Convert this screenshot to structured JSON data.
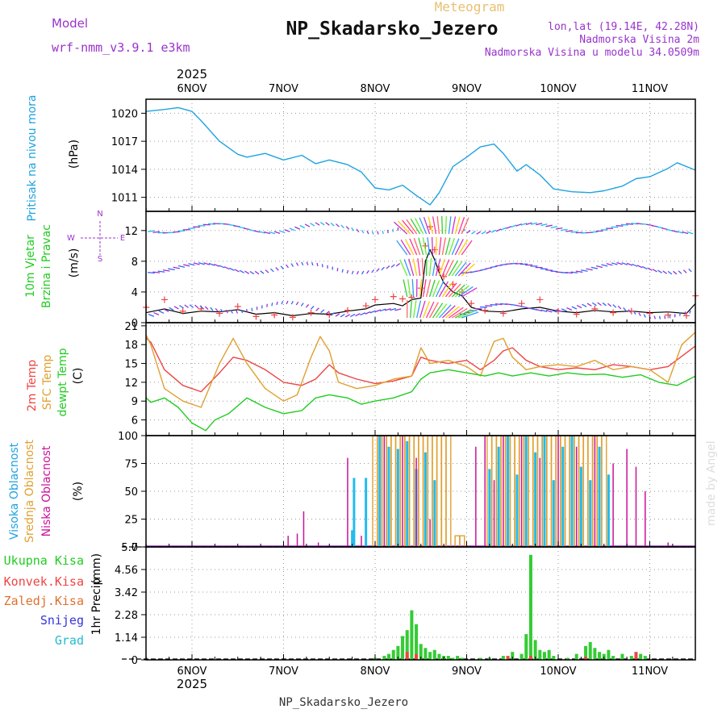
{
  "header": {
    "title": "NP_Skadarsko_Jezero",
    "subtitle": "Meteogram",
    "model_label": "Model",
    "model_name": "wrf-nmm_v3.9.1 e3km",
    "coords": "lon,lat (19.14E, 42.28N)",
    "elevation": "Nadmorska Visina 2m",
    "model_elevation": "Nadmorska Visina u modelu 34.0509m",
    "footer": "NP_Skadarsko_Jezero",
    "credit": "made by Angel",
    "year": "2025"
  },
  "colors": {
    "pressure": "#1fa3e0",
    "temp2m": "#ee4444",
    "sfc": "#e0a030",
    "dewpt": "#22cc22",
    "purple": "#9933cc",
    "blue": "#3366ff",
    "cyan": "#22bbee",
    "orange": "#e0a030",
    "magenta": "#cc1199",
    "green": "#33cc33",
    "red": "#ee4444",
    "black": "#000000"
  },
  "days": [
    "6NOV",
    "7NOV",
    "8NOV",
    "9NOV",
    "10NOV",
    "11NOV"
  ],
  "chart_data": [
    {
      "id": "pressure",
      "type": "line",
      "ylabel_main": "Pritisak na nivou mora",
      "units": "(hPa)",
      "yticks": [
        1011,
        1014,
        1017,
        1020
      ],
      "ylim": [
        1009.5,
        1021.5
      ],
      "x": [
        -0.5,
        -0.3,
        -0.15,
        0,
        0.1,
        0.3,
        0.5,
        0.6,
        0.8,
        1.0,
        1.2,
        1.35,
        1.5,
        1.7,
        1.85,
        2.0,
        2.15,
        2.3,
        2.45,
        2.6,
        2.7,
        2.85,
        3.0,
        3.15,
        3.3,
        3.4,
        3.55,
        3.65,
        3.8,
        3.95,
        4.15,
        4.35,
        4.5,
        4.7,
        4.85,
        5.0,
        5.2,
        5.3,
        5.5
      ],
      "values": [
        1020.2,
        1020.4,
        1020.6,
        1020.2,
        1019.2,
        1017.0,
        1015.6,
        1015.3,
        1015.7,
        1015.0,
        1015.5,
        1014.6,
        1015.0,
        1014.5,
        1013.7,
        1012.0,
        1011.8,
        1012.3,
        1011.2,
        1010.2,
        1011.5,
        1014.3,
        1015.3,
        1016.4,
        1016.7,
        1015.7,
        1013.8,
        1014.5,
        1013.4,
        1011.9,
        1011.6,
        1011.5,
        1011.7,
        1012.2,
        1013.0,
        1013.2,
        1014.1,
        1014.7,
        1013.9
      ]
    },
    {
      "id": "wind",
      "type": "line",
      "ylabel_main": "10m Vjetar",
      "ylabel_sub": "Brzina i Pravac",
      "units": "(m/s)",
      "yticks": [
        0,
        4,
        8,
        12
      ],
      "ylim": [
        0,
        14.5
      ],
      "compass": {
        "n": "N",
        "w": "W",
        "e": "E",
        "s": "S"
      },
      "x": [
        -0.5,
        -0.3,
        -0.1,
        0.1,
        0.3,
        0.5,
        0.7,
        0.9,
        1.1,
        1.3,
        1.5,
        1.7,
        1.9,
        2.0,
        2.2,
        2.3,
        2.4,
        2.5,
        2.55,
        2.6,
        2.65,
        2.7,
        2.75,
        2.85,
        2.95,
        3.05,
        3.2,
        3.4,
        3.6,
        3.8,
        4.0,
        4.2,
        4.4,
        4.6,
        4.8,
        5.0,
        5.2,
        5.4,
        5.5
      ],
      "values": [
        1.3,
        1.8,
        1.2,
        1.5,
        1.4,
        1.7,
        1.1,
        1.3,
        0.9,
        1.2,
        1.1,
        1.5,
        1.8,
        2.3,
        2.5,
        2.2,
        3.0,
        3.2,
        8.0,
        9.5,
        8.2,
        6.5,
        5.2,
        4.0,
        3.5,
        2.0,
        1.5,
        1.4,
        1.8,
        2.0,
        1.5,
        1.3,
        1.6,
        1.4,
        1.5,
        1.3,
        1.4,
        1.2,
        2.5
      ],
      "gust_x": [
        -0.5,
        -0.3,
        -0.1,
        0.1,
        0.3,
        0.5,
        0.7,
        0.9,
        1.1,
        1.3,
        1.5,
        1.7,
        1.9,
        2.0,
        2.2,
        2.3,
        2.4,
        2.5,
        2.55,
        2.6,
        2.65,
        2.7,
        2.75,
        2.85,
        2.95,
        3.05,
        3.2,
        3.4,
        3.6,
        3.8,
        4.0,
        4.2,
        4.4,
        4.6,
        4.8,
        5.0,
        5.2,
        5.4,
        5.5
      ],
      "gust_values": [
        2.0,
        3.0,
        1.5,
        1.8,
        1.2,
        2.1,
        0.8,
        1.0,
        0.7,
        1.3,
        1.0,
        1.6,
        2.2,
        3.0,
        3.4,
        3.1,
        3.3,
        4.5,
        10.0,
        12.5,
        9.5,
        7.0,
        6.0,
        5.0,
        4.0,
        2.5,
        1.6,
        1.2,
        2.5,
        3.0,
        1.5,
        1.1,
        1.8,
        1.3,
        1.5,
        1.2,
        1.0,
        0.9,
        3.5
      ]
    },
    {
      "id": "temperature",
      "type": "line",
      "ylabel_main": "2m Temp",
      "ylabel_mid": "SFC Temp",
      "ylabel_sub": "dewpt Temp",
      "units": "(C)",
      "yticks": [
        6,
        9,
        12,
        15,
        18,
        21
      ],
      "ylim": [
        3.5,
        21.5
      ],
      "series": [
        {
          "name": "2m Temp",
          "x": [
            -0.5,
            -0.45,
            -0.3,
            -0.1,
            0.1,
            0.3,
            0.45,
            0.6,
            0.8,
            1.0,
            1.2,
            1.35,
            1.5,
            1.6,
            1.8,
            2.0,
            2.2,
            2.4,
            2.5,
            2.6,
            2.8,
            3.0,
            3.15,
            3.3,
            3.4,
            3.5,
            3.65,
            3.8,
            4.0,
            4.2,
            4.4,
            4.6,
            4.8,
            5.0,
            5.2,
            5.5
          ],
          "values": [
            19.0,
            18.4,
            14.0,
            11.5,
            10.5,
            13.5,
            16.0,
            15.5,
            14.0,
            12.0,
            11.5,
            12.5,
            14.8,
            13.5,
            12.5,
            11.8,
            12.2,
            13.0,
            16.0,
            15.5,
            15.0,
            15.5,
            14.0,
            15.5,
            17.0,
            17.5,
            15.5,
            14.5,
            14.0,
            14.3,
            14.0,
            14.8,
            14.5,
            14.0,
            14.5,
            17.8
          ]
        },
        {
          "name": "SFC Temp",
          "x": [
            -0.5,
            -0.45,
            -0.3,
            -0.1,
            0.1,
            0.3,
            0.45,
            0.6,
            0.8,
            1.0,
            1.15,
            1.3,
            1.4,
            1.5,
            1.6,
            1.8,
            2.0,
            2.2,
            2.4,
            2.5,
            2.6,
            2.8,
            3.0,
            3.15,
            3.3,
            3.4,
            3.5,
            3.65,
            3.8,
            4.0,
            4.2,
            4.4,
            4.6,
            4.8,
            5.0,
            5.2,
            5.35,
            5.5
          ],
          "values": [
            19.5,
            18.0,
            11.0,
            9.0,
            8.0,
            15.0,
            19.0,
            15.0,
            11.0,
            9.0,
            10.0,
            16.0,
            19.3,
            17.0,
            12.0,
            11.0,
            11.5,
            12.5,
            13.0,
            17.5,
            15.0,
            15.5,
            14.5,
            13.0,
            18.5,
            19.0,
            16.0,
            14.0,
            14.5,
            14.8,
            14.5,
            15.5,
            14.0,
            14.5,
            14.0,
            12.0,
            18.0,
            20.0
          ]
        },
        {
          "name": "dewpt Temp",
          "x": [
            -0.5,
            -0.45,
            -0.3,
            -0.15,
            0.0,
            0.15,
            0.25,
            0.4,
            0.6,
            0.8,
            1.0,
            1.2,
            1.35,
            1.5,
            1.7,
            1.85,
            2.0,
            2.2,
            2.4,
            2.5,
            2.6,
            2.8,
            3.0,
            3.2,
            3.35,
            3.5,
            3.7,
            3.9,
            4.1,
            4.3,
            4.5,
            4.7,
            4.9,
            5.1,
            5.3,
            5.5
          ],
          "values": [
            9.5,
            8.8,
            9.5,
            8.0,
            5.5,
            4.3,
            6.0,
            7.0,
            9.5,
            8.0,
            7.0,
            7.5,
            9.5,
            10.0,
            9.5,
            8.5,
            9.0,
            9.5,
            10.5,
            12.5,
            13.5,
            14.0,
            13.5,
            13.0,
            13.5,
            13.0,
            13.5,
            13.0,
            13.5,
            13.2,
            13.3,
            12.8,
            13.2,
            12.0,
            11.5,
            13.0
          ]
        }
      ]
    },
    {
      "id": "clouds",
      "type": "bar",
      "ylabel_main": "Visoka Oblacnost",
      "ylabel_mid": "Srednja Oblacnost",
      "ylabel_sub": "Niska Oblacnost",
      "units": "(%)",
      "yticks": [
        0,
        25,
        50,
        75,
        100
      ],
      "ylim": [
        0,
        100
      ],
      "series": [
        {
          "name": "Visoka Oblacnost",
          "x": [
            1.75,
            1.77,
            1.9,
            2.05,
            2.15,
            2.25,
            2.35,
            2.45,
            2.55,
            2.65,
            3.25,
            3.35,
            3.45,
            3.55,
            3.65,
            3.75,
            3.85,
            3.95,
            4.05,
            4.15,
            4.25,
            4.35,
            4.45,
            4.55
          ],
          "values": [
            15,
            62,
            62,
            100,
            90,
            88,
            95,
            70,
            85,
            60,
            70,
            90,
            100,
            65,
            100,
            85,
            100,
            60,
            90,
            100,
            72,
            60,
            90,
            65
          ]
        },
        {
          "name": "Srednja Oblacnost",
          "x": [
            2.0,
            2.05,
            2.1,
            2.15,
            2.2,
            2.25,
            2.3,
            2.35,
            2.4,
            2.45,
            2.5,
            2.55,
            2.6,
            2.65,
            2.7,
            2.75,
            2.8,
            2.9,
            2.95,
            3.25,
            3.3,
            3.35,
            3.4,
            3.45,
            3.5,
            3.55,
            3.6,
            3.65,
            3.7,
            3.75,
            3.8,
            3.85,
            3.9,
            3.95,
            4.0,
            4.05,
            4.1,
            4.15,
            4.2,
            4.25,
            4.3,
            4.35,
            4.4,
            4.45,
            4.5
          ],
          "values": [
            100,
            100,
            100,
            100,
            100,
            100,
            100,
            100,
            100,
            100,
            100,
            100,
            100,
            100,
            100,
            100,
            100,
            10,
            10,
            100,
            100,
            100,
            100,
            100,
            100,
            100,
            100,
            100,
            100,
            100,
            100,
            100,
            100,
            100,
            100,
            100,
            100,
            100,
            100,
            100,
            100,
            100,
            100,
            100,
            100
          ]
        },
        {
          "name": "Niska Oblacnost",
          "x": [
            1.05,
            1.15,
            1.22,
            1.38,
            1.7,
            1.85,
            2.1,
            2.3,
            2.45,
            2.6,
            3.1,
            3.2,
            3.3,
            3.4,
            3.6,
            3.8,
            4.0,
            4.2,
            4.4,
            4.6,
            4.75,
            4.85,
            4.95,
            5.2
          ],
          "values": [
            10,
            12,
            32,
            4,
            80,
            10,
            100,
            100,
            80,
            25,
            90,
            100,
            60,
            100,
            100,
            80,
            100,
            90,
            100,
            75,
            88,
            72,
            50,
            4
          ]
        }
      ]
    },
    {
      "id": "precip",
      "type": "bar",
      "ylabel_main": "1hr Precip",
      "units": "(mm)",
      "yticks": [
        0,
        1.14,
        2.28,
        3.42,
        4.56,
        5.7
      ],
      "ylim": [
        0,
        5.7
      ],
      "legend": [
        "Ukupna Kisa",
        "Konvek.Kisa",
        "Zaledj.Kisa",
        "Snijeg",
        "Grad"
      ],
      "series": [
        {
          "name": "Ukupna Kisa",
          "x": [
            2.0,
            2.1,
            2.15,
            2.2,
            2.25,
            2.3,
            2.35,
            2.4,
            2.45,
            2.5,
            2.55,
            2.6,
            2.65,
            2.7,
            2.75,
            2.8,
            2.85,
            2.9,
            2.95,
            3.15,
            3.25,
            3.4,
            3.5,
            3.6,
            3.65,
            3.7,
            3.75,
            3.8,
            3.85,
            3.9,
            3.95,
            4.1,
            4.2,
            4.3,
            4.35,
            4.4,
            4.45,
            4.5,
            4.55,
            4.6,
            4.7,
            4.8,
            4.9,
            4.95
          ],
          "values": [
            0.1,
            0.2,
            0.3,
            0.5,
            0.7,
            1.2,
            1.5,
            2.5,
            1.8,
            0.8,
            0.6,
            0.4,
            0.5,
            0.3,
            0.2,
            0.2,
            0.1,
            0.2,
            0.1,
            0.1,
            0.1,
            0.2,
            0.4,
            0.3,
            1.3,
            5.3,
            1.0,
            0.5,
            0.4,
            0.5,
            0.2,
            0.1,
            0.3,
            0.7,
            0.9,
            0.6,
            0.4,
            0.3,
            0.5,
            0.2,
            0.3,
            0.2,
            0.3,
            0.2
          ]
        },
        {
          "name": "Konvek.Kisa",
          "x": [
            2.35,
            2.45,
            3.45,
            3.7,
            4.3,
            4.85
          ],
          "values": [
            0.4,
            0.3,
            0.2,
            0.2,
            0.15,
            0.4
          ]
        }
      ]
    }
  ]
}
